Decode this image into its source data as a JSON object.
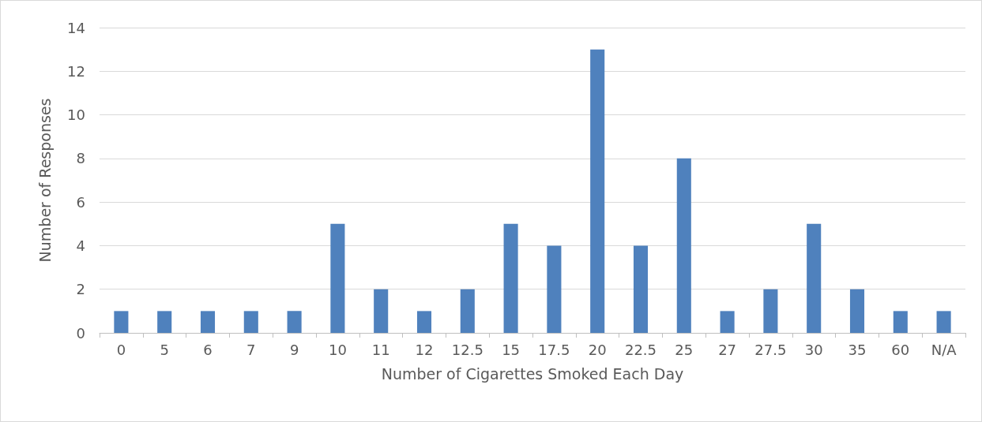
{
  "chart_data": {
    "type": "bar",
    "xlabel": "Number of Cigarettes Smoked Each Day",
    "ylabel": "Number of Responses",
    "categories": [
      "0",
      "5",
      "6",
      "7",
      "9",
      "10",
      "11",
      "12",
      "12.5",
      "15",
      "17.5",
      "20",
      "22.5",
      "25",
      "27",
      "27.5",
      "30",
      "35",
      "60",
      "N/A"
    ],
    "values": [
      1,
      1,
      1,
      1,
      1,
      5,
      2,
      1,
      2,
      5,
      4,
      13,
      4,
      8,
      1,
      2,
      5,
      2,
      1,
      1
    ],
    "color": "#4f81bd",
    "ylim": [
      0,
      14
    ],
    "yticks": [
      0,
      2,
      4,
      6,
      8,
      10,
      12,
      14
    ],
    "grid": "y"
  }
}
